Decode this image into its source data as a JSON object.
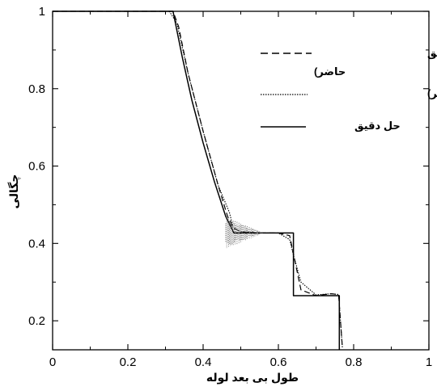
{
  "chart_data": {
    "type": "line",
    "title": "",
    "xlabel": "طول بی بعد لوله",
    "ylabel": "چگالی",
    "xlim": [
      0,
      1
    ],
    "ylim": [
      0.125,
      1
    ],
    "x_ticks": [
      0,
      0.2,
      0.4,
      0.6,
      0.8,
      1
    ],
    "x_tick_labels": [
      "0",
      "0.2",
      "0.4",
      "0.6",
      "0.8",
      "1"
    ],
    "y_ticks": [
      0.2,
      0.4,
      0.6,
      0.8,
      1
    ],
    "y_tick_labels": [
      "0.2",
      "0.4",
      "0.6",
      "0.8",
      "1"
    ],
    "grid": false,
    "legend_position": "top-right",
    "series": [
      {
        "name": "مدل نویر استوکس(تحقیق حاضر)",
        "style": "dashed",
        "x": [
          0,
          0.32,
          0.335,
          0.36,
          0.4,
          0.44,
          0.465,
          0.48,
          0.5,
          0.55,
          0.6,
          0.63,
          0.645,
          0.66,
          0.7,
          0.74,
          0.76,
          0.765,
          0.77
        ],
        "y": [
          1,
          1,
          0.96,
          0.84,
          0.69,
          0.55,
          0.47,
          0.44,
          0.43,
          0.427,
          0.427,
          0.42,
          0.35,
          0.28,
          0.265,
          0.27,
          0.268,
          0.2,
          0.13
        ]
      },
      {
        "name": "مدل اویلر (تحقیق حاضر)",
        "style": "dotted",
        "x": [
          0,
          0.31,
          0.33,
          0.36,
          0.4,
          0.44,
          0.47,
          0.48,
          0.5,
          0.55,
          0.6,
          0.63,
          0.64,
          0.66,
          0.7,
          0.74,
          0.76,
          0.765,
          0.77
        ],
        "y": [
          1,
          1,
          0.97,
          0.84,
          0.69,
          0.55,
          0.48,
          0.44,
          0.43,
          0.427,
          0.427,
          0.41,
          0.37,
          0.3,
          0.267,
          0.27,
          0.268,
          0.2,
          0.13
        ]
      },
      {
        "name": "حل دقیق",
        "style": "solid",
        "x": [
          0,
          0.32,
          0.345,
          0.37,
          0.4,
          0.43,
          0.46,
          0.482,
          0.64,
          0.64,
          0.762,
          0.762,
          0.762
        ],
        "y": [
          1,
          1,
          0.88,
          0.77,
          0.66,
          0.56,
          0.47,
          0.427,
          0.427,
          0.265,
          0.265,
          0.16,
          0.125
        ]
      }
    ],
    "euler_oscillation_region": {
      "x_start": 0.46,
      "x_end": 0.56,
      "y_center": 0.427
    }
  }
}
